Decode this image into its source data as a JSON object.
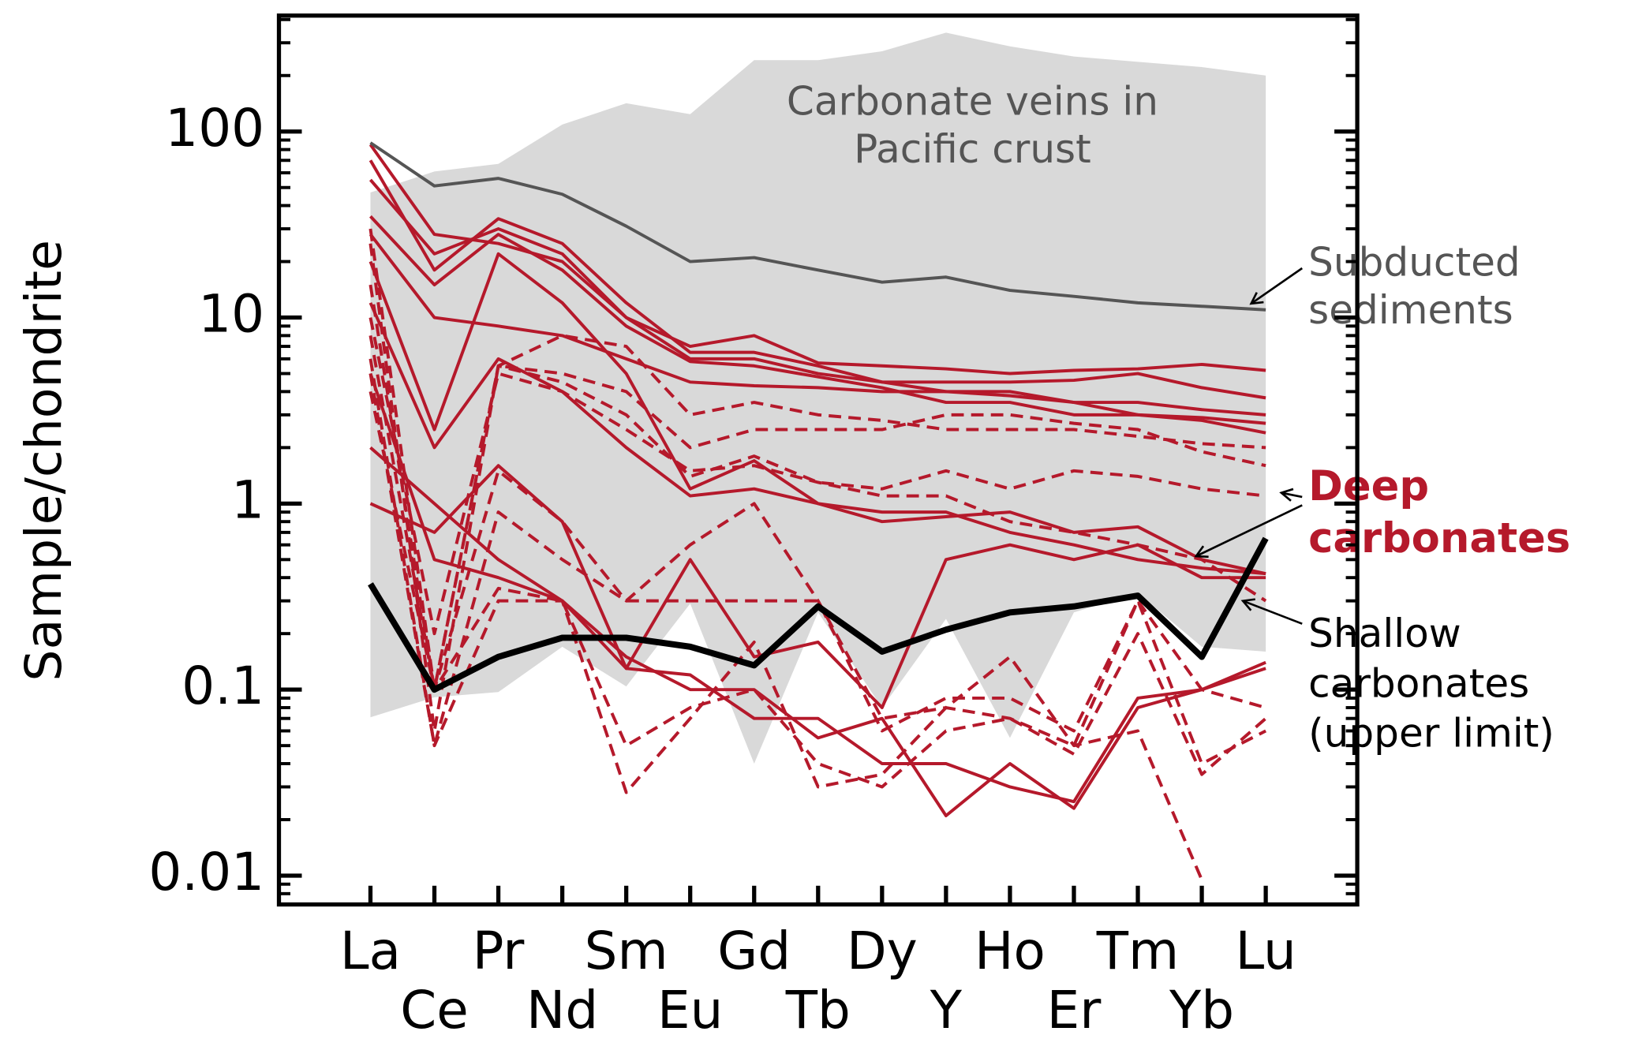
{
  "chart_data": {
    "type": "line",
    "y_label": "Sample/chondrite",
    "categories": [
      "La",
      "Ce",
      "Pr",
      "Nd",
      "Sm",
      "Eu",
      "Gd",
      "Tb",
      "Dy",
      "Y",
      "Ho",
      "Er",
      "Tm",
      "Yb",
      "Lu"
    ],
    "log_scale": true,
    "ylim": [
      0.007,
      420
    ],
    "yticks": [
      0.01,
      0.1,
      1,
      10,
      100
    ],
    "yminor_ticks": [
      0.007,
      0.008,
      0.009,
      0.02,
      0.03,
      0.04,
      0.05,
      0.06,
      0.07,
      0.08,
      0.09,
      0.2,
      0.3,
      0.4,
      0.5,
      0.6,
      0.7,
      0.8,
      0.9,
      2,
      3,
      4,
      5,
      6,
      7,
      8,
      9,
      20,
      30,
      40,
      50,
      60,
      70,
      80,
      90,
      200,
      300,
      400
    ],
    "band": {
      "color": "#d9d9d9",
      "upper": [
        47,
        61,
        67,
        109,
        142,
        124,
        242,
        242,
        270,
        340,
        287,
        253,
        237,
        222,
        200
      ],
      "lower": [
        0.071,
        0.091,
        0.097,
        0.17,
        0.104,
        0.29,
        0.04,
        0.26,
        0.08,
        0.24,
        0.055,
        0.26,
        0.33,
        0.17,
        0.16
      ]
    },
    "series": [
      {
        "color": "#b5192b",
        "style": "dashed",
        "values": [
          30,
          0.1,
          5.5,
          8,
          7,
          3,
          3.5,
          3,
          2.8,
          2.5,
          2.5,
          2.5,
          2.3,
          2.1,
          2
        ]
      },
      {
        "color": "#b5192b",
        "style": "dashed",
        "values": [
          25,
          0.06,
          5.5,
          5,
          4,
          2,
          2.5,
          2.5,
          2.5,
          3,
          3,
          2.7,
          2.5,
          1.9,
          1.6
        ]
      },
      {
        "color": "#b5192b",
        "style": "dashed",
        "values": [
          15,
          0.1,
          5.5,
          4.5,
          3,
          1.4,
          1.8,
          1.3,
          1.2,
          1.5,
          1.2,
          1.5,
          1.4,
          1.2,
          1.1
        ]
      },
      {
        "color": "#b5192b",
        "style": "dashed",
        "values": [
          10,
          0.2,
          5,
          4,
          2.5,
          1.5,
          1.6,
          1.3,
          1.1,
          1.1,
          0.8,
          0.7,
          0.6,
          0.5,
          0.3
        ]
      },
      {
        "color": "#b5192b",
        "style": "dashed",
        "values": [
          8,
          0.1,
          1.5,
          0.8,
          0.3,
          0.6,
          1,
          0.3,
          0.07,
          0.08,
          0.07,
          0.05,
          0.3,
          0.1,
          0.08
        ]
      },
      {
        "color": "#b5192b",
        "style": "dashed",
        "values": [
          6,
          0.05,
          0.9,
          0.5,
          0.3,
          0.3,
          0.3,
          0.3,
          0.06,
          0.09,
          0.09,
          0.06,
          0.3,
          0.04,
          0.06
        ]
      },
      {
        "color": "#b5192b",
        "style": "dashed",
        "values": [
          5,
          0.05,
          0.3,
          0.3,
          0.028,
          0.07,
          0.18,
          0.03,
          0.035,
          0.08,
          0.15,
          0.05,
          0.06,
          0.0095,
          null
        ]
      },
      {
        "color": "#b5192b",
        "style": "dashed",
        "values": [
          4,
          0.1,
          0.35,
          0.3,
          0.05,
          0.08,
          0.1,
          0.04,
          0.03,
          0.06,
          0.07,
          0.045,
          0.2,
          0.035,
          0.07
        ]
      },
      {
        "color": "#b5192b",
        "style": "solid",
        "values": [
          85,
          28,
          25,
          20,
          10,
          7,
          8,
          5.7,
          5.5,
          5.3,
          5,
          5.2,
          5.3,
          5.6,
          5.2
        ]
      },
      {
        "color": "#b5192b",
        "style": "solid",
        "values": [
          70,
          18,
          34,
          25,
          12,
          6.5,
          6.5,
          5.5,
          4.5,
          4.5,
          4.5,
          4.6,
          5,
          4.2,
          3.7
        ]
      },
      {
        "color": "#b5192b",
        "style": "solid",
        "values": [
          55,
          22,
          30,
          22,
          10,
          6,
          6,
          5,
          4.5,
          4,
          4,
          3.5,
          3.5,
          3.2,
          3
        ]
      },
      {
        "color": "#b5192b",
        "style": "solid",
        "values": [
          35,
          15,
          28,
          18,
          9,
          5.8,
          5.5,
          4.8,
          4.2,
          3.5,
          3.5,
          3,
          3,
          2.9,
          2.7
        ]
      },
      {
        "color": "#b5192b",
        "style": "solid",
        "values": [
          28,
          10,
          9,
          8,
          6,
          4.5,
          4.3,
          4.2,
          4,
          4,
          3.8,
          3.5,
          3,
          2.8,
          2.4
        ]
      },
      {
        "color": "#b5192b",
        "style": "solid",
        "values": [
          20,
          2.5,
          22,
          12,
          5,
          1.2,
          1.7,
          1,
          0.8,
          0.85,
          0.9,
          0.7,
          0.75,
          0.5,
          0.42
        ]
      },
      {
        "color": "#b5192b",
        "style": "solid",
        "values": [
          12,
          2,
          6,
          4,
          2,
          1.1,
          1.2,
          1,
          0.9,
          0.9,
          0.7,
          0.6,
          0.5,
          0.45,
          0.42
        ]
      },
      {
        "color": "#b5192b",
        "style": "solid",
        "values": [
          2,
          1,
          0.5,
          0.3,
          0.15,
          0.1,
          0.1,
          0.055,
          0.07,
          0.021,
          0.04,
          0.023,
          0.08,
          0.1,
          0.13
        ]
      },
      {
        "color": "#b5192b",
        "style": "solid",
        "values": [
          5,
          0.5,
          0.4,
          0.3,
          0.13,
          0.5,
          0.15,
          0.18,
          0.08,
          0.5,
          0.6,
          0.5,
          0.6,
          0.4,
          0.4
        ]
      },
      {
        "color": "#b5192b",
        "style": "solid",
        "values": [
          1,
          0.7,
          1.6,
          0.8,
          0.13,
          0.12,
          0.07,
          0.07,
          0.04,
          0.04,
          0.03,
          0.025,
          0.09,
          0.1,
          0.14
        ]
      },
      {
        "color": "#555555",
        "style": "solid",
        "values": [
          87,
          51,
          56,
          46,
          31,
          20,
          21,
          18,
          15.5,
          16.5,
          14,
          13,
          12,
          11.5,
          11
        ]
      },
      {
        "color": "#000000",
        "style": "bold",
        "values": [
          0.37,
          0.1,
          0.15,
          0.19,
          0.19,
          0.17,
          0.135,
          0.28,
          0.16,
          0.21,
          0.26,
          0.28,
          0.32,
          0.15,
          0.65
        ]
      }
    ],
    "annotations": [
      {
        "lines": [
          "Carbonate veins in",
          "Pacific crust"
        ],
        "color": "#555555"
      },
      {
        "lines": [
          "Subducted",
          "sediments"
        ],
        "color": "#555555"
      },
      {
        "lines": [
          "Deep",
          "carbonates"
        ],
        "color": "#b5192b"
      },
      {
        "lines": [
          "Shallow",
          "carbonates",
          "(upper limit)"
        ],
        "color": "#000000"
      }
    ]
  }
}
